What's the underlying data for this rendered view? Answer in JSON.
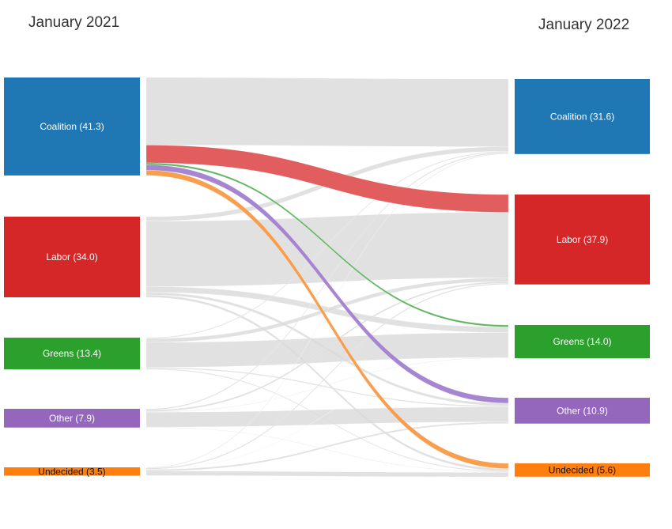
{
  "titles": {
    "left": "January 2021",
    "right": "January 2022"
  },
  "chart_data": {
    "type": "sankey",
    "units": "percent",
    "left_nodes": [
      {
        "id": "coalition",
        "label": "Coalition (41.3)",
        "value": 41.3,
        "color": "#1f77b4",
        "text_color": "#ffffff"
      },
      {
        "id": "labor",
        "label": "Labor (34.0)",
        "value": 34.0,
        "color": "#d62728",
        "text_color": "#ffffff"
      },
      {
        "id": "greens",
        "label": "Greens (13.4)",
        "value": 13.4,
        "color": "#2ca02c",
        "text_color": "#ffffff"
      },
      {
        "id": "other",
        "label": "Other (7.9)",
        "value": 7.9,
        "color": "#9467bd",
        "text_color": "#ffffff"
      },
      {
        "id": "undecided",
        "label": "Undecided (3.5)",
        "value": 3.5,
        "color": "#ff7f0e",
        "text_color": "#111111"
      }
    ],
    "right_nodes": [
      {
        "id": "coalition",
        "label": "Coalition  (31.6)",
        "value": 31.6,
        "color": "#1f77b4",
        "text_color": "#ffffff"
      },
      {
        "id": "labor",
        "label": "Labor (37.9)",
        "value": 37.9,
        "color": "#d62728",
        "text_color": "#ffffff"
      },
      {
        "id": "greens",
        "label": "Greens (14.0)",
        "value": 14.0,
        "color": "#2ca02c",
        "text_color": "#ffffff"
      },
      {
        "id": "other",
        "label": "Other (10.9)",
        "value": 10.9,
        "color": "#9467bd",
        "text_color": "#ffffff"
      },
      {
        "id": "undecided",
        "label": "Undecided (5.6)",
        "value": 5.6,
        "color": "#ff7f0e",
        "text_color": "#111111"
      }
    ],
    "highlight_color": {
      "labor": "#e05555",
      "greens": "#58b358",
      "other": "#a27fcf",
      "undecided": "#f79a44"
    },
    "neutral_color": "#dadada",
    "flows": [
      {
        "from": "coalition",
        "to": "coalition",
        "value": 28.5
      },
      {
        "from": "coalition",
        "to": "labor",
        "value": 7.5,
        "highlight": true
      },
      {
        "from": "coalition",
        "to": "greens",
        "value": 0.8,
        "highlight": true
      },
      {
        "from": "coalition",
        "to": "other",
        "value": 2.3,
        "highlight": true
      },
      {
        "from": "coalition",
        "to": "undecided",
        "value": 2.2,
        "highlight": true
      },
      {
        "from": "labor",
        "to": "coalition",
        "value": 1.9
      },
      {
        "from": "labor",
        "to": "labor",
        "value": 27.6
      },
      {
        "from": "labor",
        "to": "greens",
        "value": 2.4
      },
      {
        "from": "labor",
        "to": "other",
        "value": 1.1
      },
      {
        "from": "labor",
        "to": "undecided",
        "value": 1.0
      },
      {
        "from": "greens",
        "to": "coalition",
        "value": 0.4
      },
      {
        "from": "greens",
        "to": "labor",
        "value": 1.6
      },
      {
        "from": "greens",
        "to": "greens",
        "value": 10.5
      },
      {
        "from": "greens",
        "to": "other",
        "value": 0.5
      },
      {
        "from": "greens",
        "to": "undecided",
        "value": 0.4
      },
      {
        "from": "other",
        "to": "coalition",
        "value": 0.5
      },
      {
        "from": "other",
        "to": "labor",
        "value": 0.7
      },
      {
        "from": "other",
        "to": "greens",
        "value": 0.2
      },
      {
        "from": "other",
        "to": "other",
        "value": 6.3
      },
      {
        "from": "other",
        "to": "undecided",
        "value": 0.2
      },
      {
        "from": "undecided",
        "to": "coalition",
        "value": 0.3
      },
      {
        "from": "undecided",
        "to": "labor",
        "value": 0.5
      },
      {
        "from": "undecided",
        "to": "greens",
        "value": 0.1
      },
      {
        "from": "undecided",
        "to": "other",
        "value": 0.7
      },
      {
        "from": "undecided",
        "to": "undecided",
        "value": 1.9
      }
    ]
  }
}
